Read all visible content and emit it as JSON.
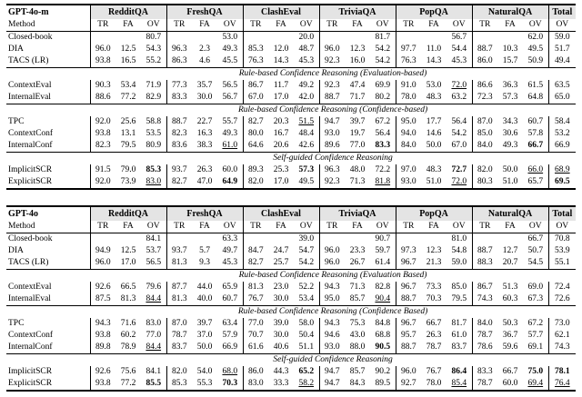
{
  "columns": {
    "method_label": "Method",
    "sub_labels": [
      "TR",
      "FA",
      "OV"
    ],
    "total_sub_label": "OV",
    "groups": [
      {
        "name": "RedditQA",
        "span": 3
      },
      {
        "name": "FreshQA",
        "span": 3
      },
      {
        "name": "ClashEval",
        "span": 3
      },
      {
        "name": "TriviaQA",
        "span": 3
      },
      {
        "name": "PopQA",
        "span": 3
      },
      {
        "name": "NaturalQA",
        "span": 3
      },
      {
        "name": "Total",
        "span": 1
      }
    ]
  },
  "styles": {
    "shade": "#e4e4e4",
    "rule_color": "#000000"
  },
  "tables": [
    {
      "model": "GPT-4o-m",
      "sections": [
        {
          "header": "",
          "rows": [
            {
              "method": "Closed-book",
              "cells": [
                "",
                "",
                "80.7",
                "",
                "",
                "53.0",
                "",
                "",
                "20.0",
                "",
                "",
                "81.7",
                "",
                "",
                "56.7",
                "",
                "",
                "62.0",
                "59.0"
              ]
            },
            {
              "method": "DIA",
              "cells": [
                "96.0",
                "12.5",
                "54.3",
                "96.3",
                "2.3",
                "49.3",
                "85.3",
                "12.0",
                "48.7",
                "96.0",
                "12.3",
                "54.2",
                "97.7",
                "11.0",
                "54.4",
                "88.7",
                "10.3",
                "49.5",
                "51.7"
              ]
            },
            {
              "method": "TACS (LR)",
              "cells": [
                "93.8",
                "16.5",
                "55.2",
                "86.3",
                "4.6",
                "45.5",
                "76.3",
                "14.3",
                "45.3",
                "92.3",
                "16.0",
                "54.2",
                "76.3",
                "14.3",
                "45.3",
                "86.0",
                "15.7",
                "50.9",
                "49.4"
              ]
            }
          ]
        },
        {
          "header": "Rule-based Confidence Reasoning (Evaluation-based)",
          "rows": [
            {
              "method": "ContextEval",
              "cells": [
                "90.3",
                "53.4",
                "71.9",
                "77.3",
                "35.7",
                "56.5",
                "86.7",
                "11.7",
                "49.2",
                "92.3",
                "47.4",
                "69.9",
                "91.0",
                "53.0",
                {
                  "v": "72.0",
                  "u": 1
                },
                "86.6",
                "36.3",
                "61.5",
                "63.5"
              ]
            },
            {
              "method": "InternalEval",
              "cells": [
                "88.6",
                "77.2",
                "82.9",
                "83.3",
                "30.0",
                "56.7",
                "67.0",
                "17.0",
                "42.0",
                "88.7",
                "71.7",
                "80.2",
                "78.0",
                "48.3",
                "63.2",
                "72.3",
                "57.3",
                "64.8",
                "65.0"
              ]
            }
          ]
        },
        {
          "header": "Rule-based Confidence Reasoning (Confidence-based)",
          "rows": [
            {
              "method": "TPC",
              "cells": [
                "92.0",
                "25.6",
                "58.8",
                "88.7",
                "22.7",
                "55.7",
                "82.7",
                "20.3",
                {
                  "v": "51.5",
                  "u": 1
                },
                "94.7",
                "39.7",
                "67.2",
                "95.0",
                "17.7",
                "56.4",
                "87.0",
                "34.3",
                "60.7",
                "58.4"
              ]
            },
            {
              "method": "ContextConf",
              "cells": [
                "93.8",
                "13.1",
                "53.5",
                "82.3",
                "16.3",
                "49.3",
                "80.0",
                "16.7",
                "48.4",
                "93.0",
                "19.7",
                "56.4",
                "94.0",
                "14.6",
                "54.2",
                "85.0",
                "30.6",
                "57.8",
                "53.2"
              ]
            },
            {
              "method": "InternalConf",
              "cells": [
                "82.3",
                "79.5",
                "80.9",
                "83.6",
                "38.3",
                {
                  "v": "61.0",
                  "u": 1
                },
                "64.6",
                "20.6",
                "42.6",
                "89.6",
                "77.0",
                {
                  "v": "83.3",
                  "b": 1
                },
                "84.0",
                "50.0",
                "67.0",
                "84.0",
                "49.3",
                {
                  "v": "66.7",
                  "b": 1
                },
                "66.9"
              ]
            }
          ]
        },
        {
          "header": "Self-guided Confidence Reasoning",
          "rows": [
            {
              "method": "ImplicitSCR",
              "cells": [
                "91.5",
                "79.0",
                {
                  "v": "85.3",
                  "b": 1
                },
                "93.7",
                "26.3",
                "60.0",
                "89.3",
                "25.3",
                {
                  "v": "57.3",
                  "b": 1
                },
                "96.3",
                "48.0",
                "72.2",
                "97.0",
                "48.3",
                {
                  "v": "72.7",
                  "b": 1
                },
                "82.0",
                "50.0",
                {
                  "v": "66.0",
                  "u": 1
                },
                {
                  "v": "68.9",
                  "u": 1
                }
              ]
            },
            {
              "method": "ExplicitSCR",
              "cells": [
                "92.0",
                "73.9",
                {
                  "v": "83.0",
                  "u": 1
                },
                "82.7",
                "47.0",
                {
                  "v": "64.9",
                  "b": 1
                },
                "82.0",
                "17.0",
                "49.5",
                "92.3",
                "71.3",
                {
                  "v": "81.8",
                  "u": 1
                },
                "93.0",
                "51.0",
                {
                  "v": "72.0",
                  "u": 1
                },
                "80.3",
                "51.0",
                "65.7",
                {
                  "v": "69.5",
                  "b": 1
                }
              ]
            }
          ]
        }
      ]
    },
    {
      "model": "GPT-4o",
      "sections": [
        {
          "header": "",
          "rows": [
            {
              "method": "Closed-book",
              "cells": [
                "",
                "",
                "84.1",
                "",
                "",
                "63.3",
                "",
                "",
                "39.0",
                "",
                "",
                "90.7",
                "",
                "",
                "81.0",
                "",
                "",
                "66.7",
                "70.8"
              ]
            },
            {
              "method": "DIA",
              "cells": [
                "94.9",
                "12.5",
                "53.7",
                "93.7",
                "5.7",
                "49.7",
                "84.7",
                "24.7",
                "54.7",
                "96.0",
                "23.3",
                "59.7",
                "97.3",
                "12.3",
                "54.8",
                "88.7",
                "12.7",
                "50.7",
                "53.9"
              ]
            },
            {
              "method": "TACS (LR)",
              "cells": [
                "96.0",
                "17.0",
                "56.5",
                "81.3",
                "9.3",
                "45.3",
                "82.7",
                "25.7",
                "54.2",
                "96.0",
                "26.7",
                "61.4",
                "96.7",
                "21.3",
                "59.0",
                "88.3",
                "20.7",
                "54.5",
                "55.1"
              ]
            }
          ]
        },
        {
          "header": "Rule-based Confidence Reasoning (Evaluation Based)",
          "rows": [
            {
              "method": "ContextEval",
              "cells": [
                "92.6",
                "66.5",
                "79.6",
                "87.7",
                "44.0",
                "65.9",
                "81.3",
                "23.0",
                "52.2",
                "94.3",
                "71.3",
                "82.8",
                "96.7",
                "73.3",
                "85.0",
                "86.7",
                "51.3",
                "69.0",
                "72.4"
              ]
            },
            {
              "method": "InternalEval",
              "cells": [
                "87.5",
                "81.3",
                {
                  "v": "84.4",
                  "u": 1
                },
                "81.3",
                "40.0",
                "60.7",
                "76.7",
                "30.0",
                "53.4",
                "95.0",
                "85.7",
                {
                  "v": "90.4",
                  "u": 1
                },
                "88.7",
                "70.3",
                "79.5",
                "74.3",
                "60.3",
                "67.3",
                "72.6"
              ]
            }
          ]
        },
        {
          "header": "Rule-based Confidence Reasoning (Confidence Based)",
          "rows": [
            {
              "method": "TPC",
              "cells": [
                "94.3",
                "71.6",
                "83.0",
                "87.0",
                "39.7",
                "63.4",
                "77.0",
                "39.0",
                "58.0",
                "94.3",
                "75.3",
                "84.8",
                "96.7",
                "66.7",
                "81.7",
                "84.0",
                "50.3",
                "67.2",
                "73.0"
              ]
            },
            {
              "method": "ContextConf",
              "cells": [
                "93.8",
                "60.2",
                "77.0",
                "78.7",
                "37.0",
                "57.9",
                "70.7",
                "30.0",
                "50.4",
                "94.6",
                "43.0",
                "68.8",
                "95.7",
                "26.3",
                "61.0",
                "78.7",
                "36.7",
                "57.7",
                "62.1"
              ]
            },
            {
              "method": "InternalConf",
              "cells": [
                "89.8",
                "78.9",
                {
                  "v": "84.4",
                  "u": 1
                },
                "83.7",
                "50.0",
                "66.9",
                "61.6",
                "40.6",
                "51.1",
                "93.0",
                "88.0",
                {
                  "v": "90.5",
                  "b": 1
                },
                "88.7",
                "78.7",
                "83.7",
                "78.6",
                "59.6",
                "69.1",
                "74.3"
              ]
            }
          ]
        },
        {
          "header": "Self-guided Confidence Reasoning",
          "rows": [
            {
              "method": "ImplicitSCR",
              "cells": [
                "92.6",
                "75.6",
                "84.1",
                "82.0",
                "54.0",
                {
                  "v": "68.0",
                  "u": 1
                },
                "86.0",
                "44.3",
                {
                  "v": "65.2",
                  "b": 1
                },
                "94.7",
                "85.7",
                "90.2",
                "96.0",
                "76.7",
                {
                  "v": "86.4",
                  "b": 1
                },
                "83.3",
                "66.7",
                {
                  "v": "75.0",
                  "b": 1
                },
                {
                  "v": "78.1",
                  "b": 1
                }
              ]
            },
            {
              "method": "ExplicitSCR",
              "cells": [
                "93.8",
                "77.2",
                {
                  "v": "85.5",
                  "b": 1
                },
                "85.3",
                "55.3",
                {
                  "v": "70.3",
                  "b": 1
                },
                "83.0",
                "33.3",
                {
                  "v": "58.2",
                  "u": 1
                },
                "94.7",
                "84.3",
                "89.5",
                "92.7",
                "78.0",
                {
                  "v": "85.4",
                  "u": 1
                },
                "78.7",
                "60.0",
                {
                  "v": "69.4",
                  "u": 1
                },
                {
                  "v": "76.4",
                  "u": 1
                }
              ]
            }
          ]
        }
      ]
    }
  ]
}
